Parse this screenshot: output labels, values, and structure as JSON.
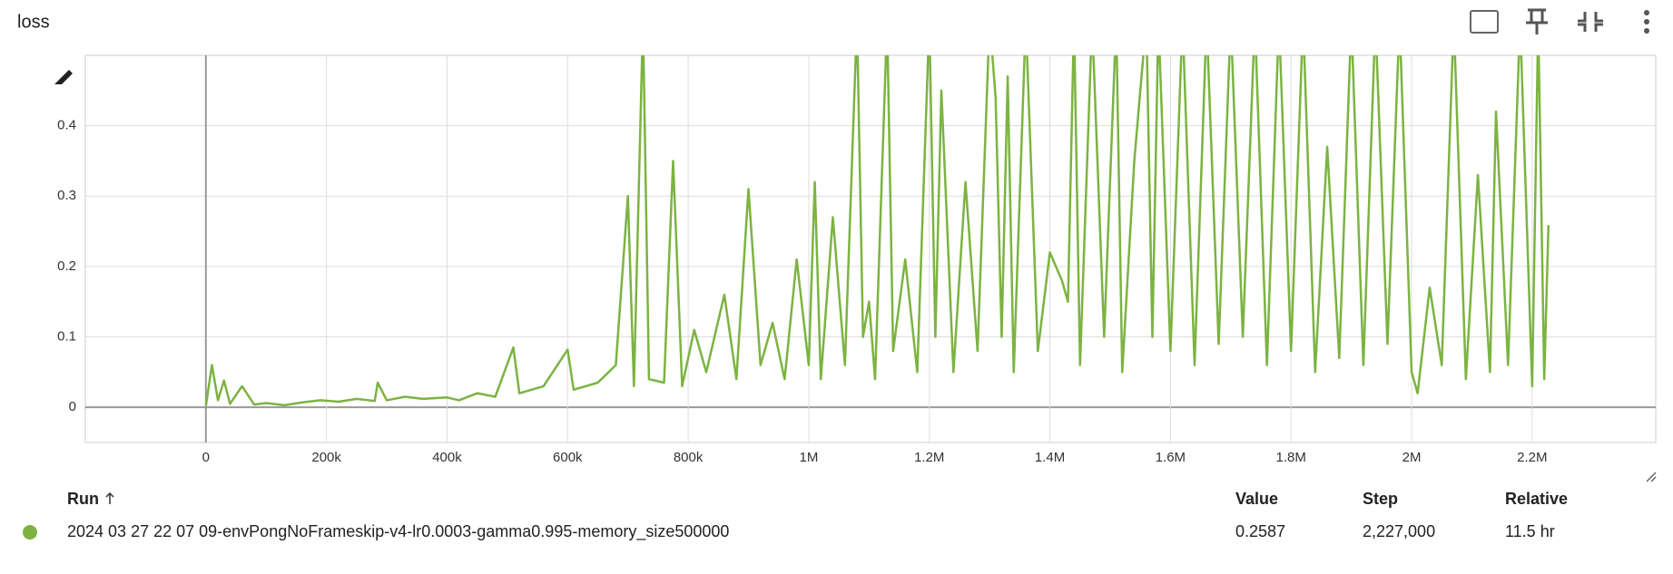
{
  "chart_data": {
    "type": "line",
    "title": "loss",
    "x": [
      0,
      10000,
      20000,
      30000,
      40000,
      60000,
      80000,
      100000,
      130000,
      160000,
      190000,
      220000,
      250000,
      280000,
      285000,
      300000,
      330000,
      360000,
      400000,
      420000,
      450000,
      480000,
      510000,
      520000,
      560000,
      600000,
      610000,
      650000,
      680000,
      700000,
      710000,
      725000,
      735000,
      760000,
      775000,
      790000,
      810000,
      830000,
      860000,
      880000,
      900000,
      920000,
      940000,
      960000,
      980000,
      1000000,
      1010000,
      1020000,
      1040000,
      1060000,
      1080000,
      1090000,
      1100000,
      1110000,
      1130000,
      1140000,
      1160000,
      1180000,
      1200000,
      1210000,
      1220000,
      1240000,
      1260000,
      1280000,
      1300000,
      1310000,
      1320000,
      1330000,
      1340000,
      1360000,
      1380000,
      1400000,
      1420000,
      1430000,
      1440000,
      1450000,
      1470000,
      1490000,
      1510000,
      1520000,
      1540000,
      1560000,
      1570000,
      1580000,
      1600000,
      1620000,
      1640000,
      1660000,
      1680000,
      1700000,
      1720000,
      1740000,
      1760000,
      1780000,
      1800000,
      1820000,
      1840000,
      1860000,
      1880000,
      1900000,
      1920000,
      1940000,
      1960000,
      1980000,
      2000000,
      2010000,
      2030000,
      2050000,
      2070000,
      2090000,
      2110000,
      2130000,
      2140000,
      2160000,
      2180000,
      2200000,
      2210000,
      2220000,
      2227000
    ],
    "series": [
      {
        "name": "2024 03 27 22 07 09-envPongNoFrameskip-v4-lr0.0003-gamma0.995-memory_size500000",
        "color": "#7cb342",
        "values": [
          0.002,
          0.06,
          0.01,
          0.038,
          0.005,
          0.03,
          0.004,
          0.006,
          0.003,
          0.007,
          0.01,
          0.008,
          0.012,
          0.009,
          0.035,
          0.01,
          0.015,
          0.012,
          0.014,
          0.01,
          0.02,
          0.015,
          0.085,
          0.02,
          0.03,
          0.082,
          0.025,
          0.035,
          0.06,
          0.3,
          0.03,
          0.55,
          0.04,
          0.035,
          0.35,
          0.03,
          0.11,
          0.05,
          0.16,
          0.04,
          0.31,
          0.06,
          0.12,
          0.04,
          0.21,
          0.06,
          0.32,
          0.04,
          0.27,
          0.06,
          0.55,
          0.1,
          0.15,
          0.04,
          0.55,
          0.08,
          0.21,
          0.05,
          0.55,
          0.1,
          0.45,
          0.05,
          0.32,
          0.08,
          0.55,
          0.44,
          0.1,
          0.47,
          0.05,
          0.55,
          0.08,
          0.22,
          0.18,
          0.15,
          0.55,
          0.06,
          0.55,
          0.1,
          0.55,
          0.05,
          0.35,
          0.55,
          0.1,
          0.55,
          0.08,
          0.55,
          0.06,
          0.55,
          0.09,
          0.55,
          0.1,
          0.55,
          0.06,
          0.55,
          0.08,
          0.55,
          0.05,
          0.37,
          0.07,
          0.55,
          0.06,
          0.55,
          0.09,
          0.55,
          0.05,
          0.02,
          0.17,
          0.06,
          0.55,
          0.04,
          0.33,
          0.05,
          0.42,
          0.06,
          0.55,
          0.03,
          0.55,
          0.04,
          0.2587
        ]
      }
    ],
    "xlim": [
      -200000,
      2405000
    ],
    "xticks": [
      0,
      {
        "value": 200000,
        "label": "200k"
      },
      {
        "value": 400000,
        "label": "400k"
      },
      {
        "value": 600000,
        "label": "600k"
      },
      {
        "value": 800000,
        "label": "800k"
      },
      {
        "value": 1000000,
        "label": "1M"
      },
      {
        "value": 1200000,
        "label": "1.2M"
      },
      {
        "value": 1400000,
        "label": "1.4M"
      },
      {
        "value": 1600000,
        "label": "1.6M"
      },
      {
        "value": 1800000,
        "label": "1.8M"
      },
      {
        "value": 2000000,
        "label": "2M"
      },
      {
        "value": 2200000,
        "label": "2.2M"
      }
    ],
    "ylim": [
      -0.05,
      0.5
    ],
    "yticks": [
      0,
      0.1,
      0.2,
      0.3,
      0.4
    ],
    "grid": true
  },
  "table": {
    "columns": [
      "Run",
      "Value",
      "Step",
      "Relative"
    ],
    "rows": [
      {
        "value": 0.2587,
        "step": "2,227,000",
        "relative": "11.5 hr"
      }
    ]
  }
}
